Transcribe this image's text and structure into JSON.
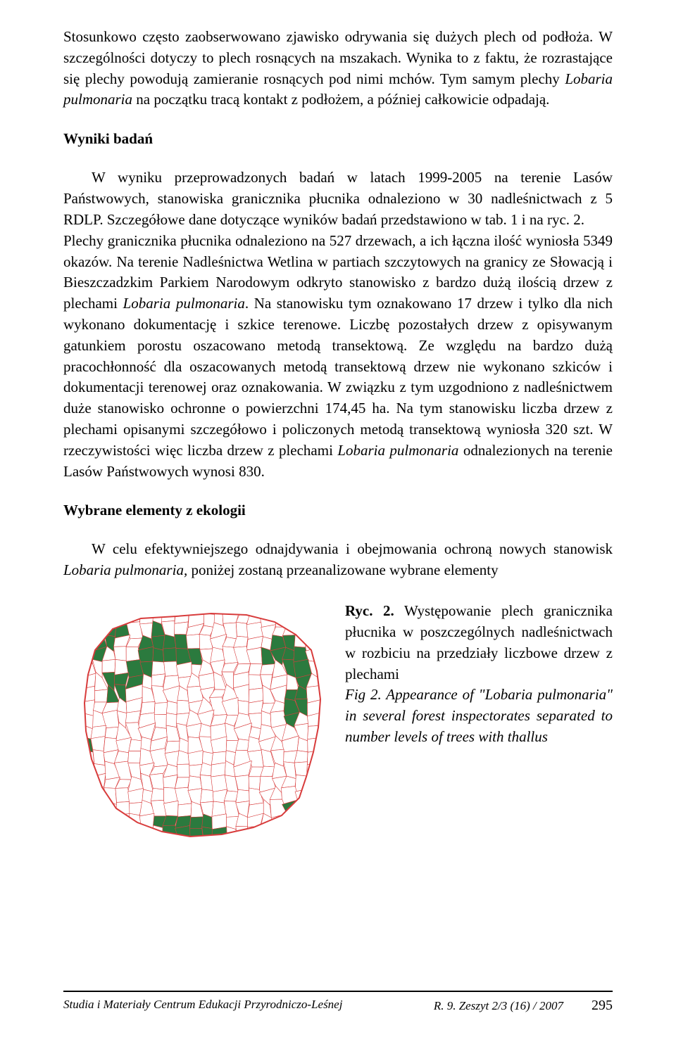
{
  "intro": {
    "text_before_italic": "Stosunkowo często zaobserwowano zjawisko odrywania się dużych plech od podłoża. W szczególności dotyczy to plech rosnących na mszakach. Wynika to z faktu, że rozrastające się plechy powodują zamieranie rosnących pod nimi mchów. Tym samym plechy ",
    "italic": "Lobaria pulmonaria",
    "text_after_italic": " na początku tracą kontakt z podłożem, a później całkowicie odpadają."
  },
  "section1": {
    "heading": "Wyniki badań",
    "para_part1": "W wyniku przeprowadzonych badań w latach 1999-2005 na terenie Lasów Państwowych, stanowiska granicznika płucnika odnaleziono w 30 nadleśnictwach z 5 RDLP. Szczegółowe dane dotyczące wyników badań przedstawiono w tab. 1 i na ryc. 2.",
    "para_part2": "Plechy granicznika płucnika odnaleziono na 527 drzewach, a ich łączna ilość wyniosła 5349 okazów. Na terenie Nadleśnictwa Wetlina w partiach szczytowych na granicy ze Słowacją i Bieszczadzkim Parkiem Narodowym odkryto stanowisko z bardzo dużą ilością drzew z plechami ",
    "para_italic1": "Lobaria pulmonaria",
    "para_part3": ". Na stanowisku tym oznakowano 17 drzew i tylko dla nich wykonano dokumentację i szkice terenowe. Liczbę pozostałych drzew z opisywanym gatunkiem porostu oszacowano metodą transektową. Ze względu na bardzo dużą pracochłonność dla oszacowanych metodą transektową drzew nie wykonano szkiców i dokumentacji terenowej oraz oznakowania. W związku z tym uzgodniono z nadleśnictwem duże stanowisko ochronne o powierzchni 174,45 ha. Na tym stanowisku liczba drzew z plechami opisanymi szczegółowo i policzonych metodą transektową wyniosła 320 szt. W rzeczywistości więc liczba drzew z plechami ",
    "para_italic2": "Lobaria pulmonaria",
    "para_part4": " odnalezionych na terenie Lasów Państwowych wynosi 830."
  },
  "section2": {
    "heading": "Wybrane elementy z ekologii",
    "para_part1": "W celu efektywniejszego odnajdywania i obejmowania ochroną nowych stanowisk ",
    "para_italic": "Lobaria pulmonaria,",
    "para_part2": " poniżej zostaną przeanalizowane wybrane elementy"
  },
  "figure": {
    "label": "Ryc. 2.",
    "caption_pl": " Występowanie plech granicznika płucnika w poszczególnych nadleśnictwach w rozbiciu na przedziały liczbowe drzew z plechami",
    "caption_en_label": "Fig 2. Appearance of \"Lobaria pulmonaria\" in several forest inspectorates separated to number levels of trees with thallus"
  },
  "map": {
    "background": "#ffffff",
    "fill_present": "#2b7a3e",
    "border_color": "#d83c3c",
    "border_inner_color": "#d83c3c",
    "outer_border_width": 2,
    "inner_border_width": 0.6,
    "cells": {
      "cols": 20,
      "rows": 18,
      "filled": [
        [
          1,
          1
        ],
        [
          2,
          1
        ],
        [
          3,
          1
        ],
        [
          6,
          1
        ],
        [
          0,
          2
        ],
        [
          1,
          2
        ],
        [
          2,
          2
        ],
        [
          5,
          2
        ],
        [
          6,
          2
        ],
        [
          7,
          2
        ],
        [
          8,
          2
        ],
        [
          16,
          2
        ],
        [
          17,
          2
        ],
        [
          0,
          3
        ],
        [
          1,
          3
        ],
        [
          5,
          3
        ],
        [
          6,
          3
        ],
        [
          7,
          3
        ],
        [
          8,
          3
        ],
        [
          9,
          3
        ],
        [
          15,
          3
        ],
        [
          16,
          3
        ],
        [
          17,
          3
        ],
        [
          18,
          3
        ],
        [
          4,
          4
        ],
        [
          5,
          4
        ],
        [
          17,
          4
        ],
        [
          18,
          4
        ],
        [
          2,
          5
        ],
        [
          3,
          5
        ],
        [
          4,
          5
        ],
        [
          18,
          5
        ],
        [
          2,
          6
        ],
        [
          3,
          6
        ],
        [
          17,
          6
        ],
        [
          18,
          6
        ],
        [
          17,
          7
        ],
        [
          18,
          7
        ],
        [
          17,
          8
        ],
        [
          0,
          10
        ],
        [
          6,
          16
        ],
        [
          7,
          16
        ],
        [
          8,
          16
        ],
        [
          9,
          16
        ],
        [
          10,
          16
        ],
        [
          17,
          16
        ],
        [
          18,
          16
        ],
        [
          7,
          17
        ],
        [
          8,
          17
        ],
        [
          9,
          17
        ],
        [
          10,
          17
        ],
        [
          11,
          17
        ],
        [
          16,
          17
        ],
        [
          17,
          17
        ],
        [
          18,
          17
        ],
        [
          17,
          15
        ],
        [
          18,
          15
        ]
      ]
    }
  },
  "footer": {
    "journal": "Studia i Materiały Centrum Edukacji Przyrodniczo-Leśnej",
    "issue": "R. 9. Zeszyt 2/3 (16) / 2007",
    "page": "295"
  }
}
